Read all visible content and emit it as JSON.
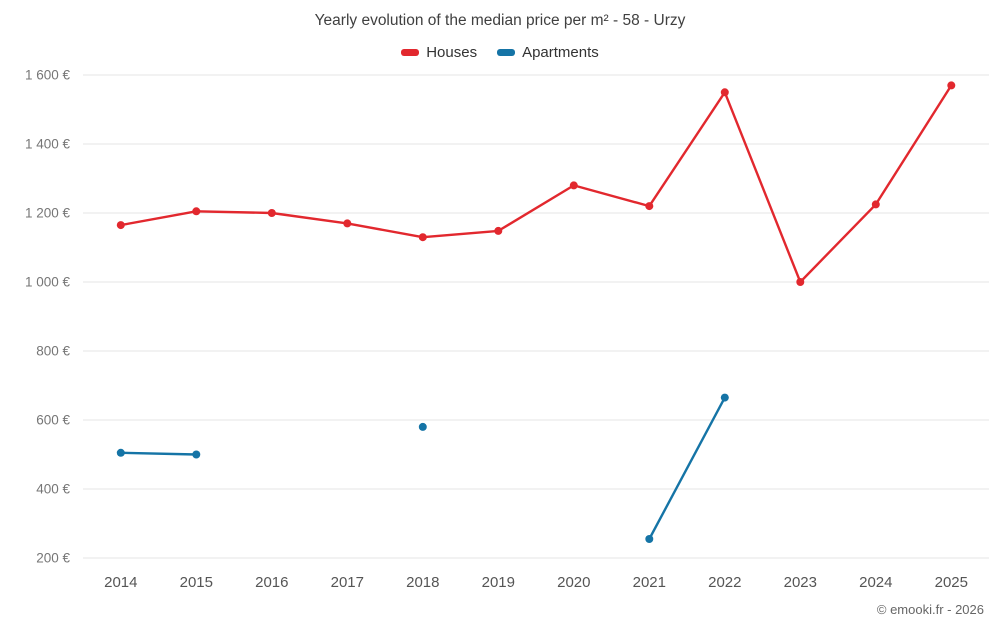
{
  "title": "Yearly evolution of the median price per m² - 58 - Urzy",
  "footer": "© emooki.fr - 2026",
  "legend": {
    "items": [
      {
        "label": "Houses",
        "color": "#e2282e"
      },
      {
        "label": "Apartments",
        "color": "#1574a6"
      }
    ]
  },
  "colors": {
    "grid": "#e6e6e6",
    "ytick_text": "#767676",
    "xtick_text": "#555555"
  },
  "chart_data": {
    "type": "line",
    "title": "Yearly evolution of the median price per m² - 58 - Urzy",
    "categories": [
      "2014",
      "2015",
      "2016",
      "2017",
      "2018",
      "2019",
      "2020",
      "2021",
      "2022",
      "2023",
      "2024",
      "2025"
    ],
    "series": [
      {
        "name": "Houses",
        "color": "#e2282e",
        "values": [
          1165,
          1205,
          1200,
          1170,
          1130,
          1148,
          1280,
          1220,
          1550,
          1000,
          1225,
          1570
        ]
      },
      {
        "name": "Apartments",
        "color": "#1574a6",
        "values": [
          505,
          500,
          null,
          null,
          580,
          null,
          null,
          255,
          665,
          null,
          null,
          null
        ]
      }
    ],
    "ylim": [
      200,
      1600
    ],
    "ytick_step": 200,
    "ytick_labels": [
      "200 €",
      "400 €",
      "600 €",
      "800 €",
      "1 000 €",
      "1 200 €",
      "1 400 €",
      "1 600 €"
    ],
    "xlabel": "",
    "ylabel": "",
    "grid": "horizontal",
    "legend_position": "top"
  }
}
